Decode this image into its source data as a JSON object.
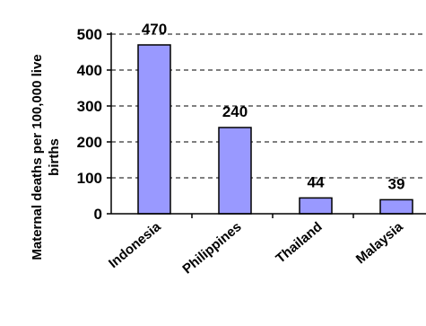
{
  "chart_data": {
    "type": "bar",
    "categories": [
      "Indonesia",
      "Philippines",
      "Thailand",
      "Malaysia"
    ],
    "values": [
      470,
      240,
      44,
      39
    ],
    "data_labels": [
      "470",
      "240",
      "44",
      "39"
    ],
    "title": "",
    "xlabel": "",
    "ylabel": "Maternal deaths per 100,000 live births",
    "ylim": [
      0,
      500
    ],
    "yticks": [
      0,
      100,
      200,
      300,
      400,
      500
    ],
    "ytick_labels": [
      "0",
      "100",
      "200",
      "300",
      "400",
      "500"
    ],
    "grid": "dashed horizontal",
    "legend": "none",
    "colors": {
      "bar_fill": "#9999ff",
      "bar_stroke": "#000000",
      "grid": "#000000"
    }
  }
}
